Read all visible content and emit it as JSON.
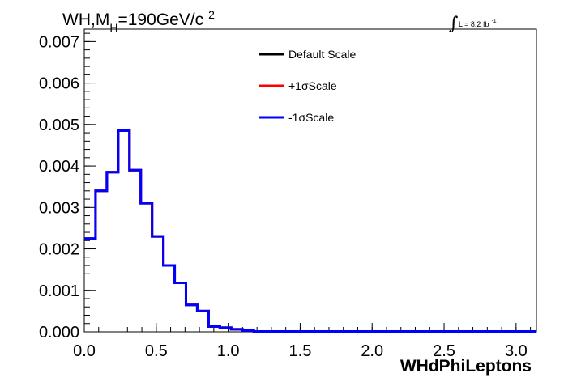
{
  "chart_data": {
    "type": "line",
    "title_main": "WH,M",
    "title_sub": "H",
    "title_value": "=190GeV/c",
    "title_sup": "2",
    "lumi_symbol": "∫",
    "lumi_label": "L = 8.2 fb",
    "lumi_sup": "-1",
    "xlabel": "WHdPhiLeptons",
    "ylabel": "",
    "xlim": [
      0,
      3.1416
    ],
    "ylim": [
      0,
      0.0073
    ],
    "x_ticks": [
      {
        "value": 0.0,
        "label": "0.0"
      },
      {
        "value": 0.5,
        "label": "0.5"
      },
      {
        "value": 1.0,
        "label": "1.0"
      },
      {
        "value": 1.5,
        "label": "1.5"
      },
      {
        "value": 2.0,
        "label": "2.0"
      },
      {
        "value": 2.5,
        "label": "2.5"
      },
      {
        "value": 3.0,
        "label": "3.0"
      }
    ],
    "y_ticks": [
      {
        "value": 0.0,
        "label": "0.000"
      },
      {
        "value": 0.001,
        "label": "0.001"
      },
      {
        "value": 0.002,
        "label": "0.002"
      },
      {
        "value": 0.003,
        "label": "0.003"
      },
      {
        "value": 0.004,
        "label": "0.004"
      },
      {
        "value": 0.005,
        "label": "0.005"
      },
      {
        "value": 0.006,
        "label": "0.006"
      },
      {
        "value": 0.007,
        "label": "0.007"
      }
    ],
    "bin_edges_start": 0.0,
    "bin_width": 0.0785,
    "series": [
      {
        "name": "Default Scale",
        "color": "#000000",
        "values": [
          0.00225,
          0.0034,
          0.00385,
          0.00485,
          0.0039,
          0.0031,
          0.0023,
          0.0016,
          0.00118,
          0.00065,
          0.0005,
          0.00013,
          0.0001,
          6e-05,
          3e-05,
          1e-05,
          1e-05,
          1e-05,
          1e-05,
          1e-05,
          1e-05,
          1e-05,
          1e-05,
          1e-05,
          1e-05,
          1e-05,
          1e-05,
          1e-05,
          1e-05,
          1e-05,
          1e-05,
          1e-05,
          1e-05,
          1e-05,
          1e-05,
          1e-05,
          1e-05,
          1e-05,
          1e-05,
          1e-05
        ]
      },
      {
        "name": "+1σScale",
        "color": "#ff0000",
        "values": [
          0.00225,
          0.0034,
          0.00385,
          0.00485,
          0.0039,
          0.0031,
          0.0023,
          0.0016,
          0.00118,
          0.00065,
          0.0005,
          0.00013,
          0.0001,
          6e-05,
          3e-05,
          1e-05,
          1e-05,
          1e-05,
          1e-05,
          1e-05,
          1e-05,
          1e-05,
          1e-05,
          1e-05,
          1e-05,
          1e-05,
          1e-05,
          1e-05,
          1e-05,
          1e-05,
          1e-05,
          1e-05,
          1e-05,
          1e-05,
          1e-05,
          1e-05,
          1e-05,
          1e-05,
          1e-05,
          1e-05
        ]
      },
      {
        "name": "-1σScale",
        "color": "#0000ff",
        "values": [
          0.00225,
          0.0034,
          0.00385,
          0.00485,
          0.0039,
          0.0031,
          0.0023,
          0.0016,
          0.00118,
          0.00065,
          0.0005,
          0.00013,
          0.0001,
          6e-05,
          3e-05,
          1e-05,
          1e-05,
          1e-05,
          1e-05,
          1e-05,
          1e-05,
          1e-05,
          1e-05,
          1e-05,
          1e-05,
          1e-05,
          1e-05,
          1e-05,
          1e-05,
          1e-05,
          1e-05,
          1e-05,
          1e-05,
          1e-05,
          1e-05,
          1e-05,
          1e-05,
          1e-05,
          1e-05,
          1e-05
        ]
      }
    ],
    "grid": false,
    "legend_position": "top-center"
  }
}
